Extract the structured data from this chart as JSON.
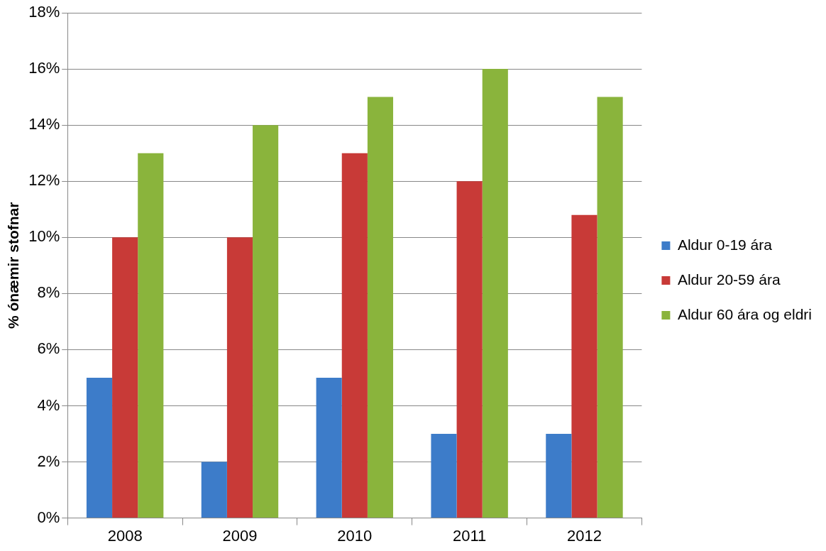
{
  "chart_data": {
    "type": "bar",
    "ylabel": "% ónæmir stofnar",
    "categories": [
      "2008",
      "2009",
      "2010",
      "2011",
      "2012"
    ],
    "series": [
      {
        "name": "Aldur 0-19 ára",
        "color": "#3d7cc9",
        "values": [
          5,
          2,
          5,
          3,
          3
        ]
      },
      {
        "name": "Aldur 20-59 ára",
        "color": "#c83a37",
        "values": [
          10,
          10,
          13,
          12,
          10.8
        ]
      },
      {
        "name": "Aldur 60 ára og eldri",
        "color": "#8ab43c",
        "values": [
          13,
          14,
          15,
          16,
          15
        ]
      }
    ],
    "ylim": [
      0,
      18
    ],
    "yticks": [
      {
        "value": 0,
        "label": "0%"
      },
      {
        "value": 2,
        "label": "2%"
      },
      {
        "value": 4,
        "label": "4%"
      },
      {
        "value": 6,
        "label": "6%"
      },
      {
        "value": 8,
        "label": "8%"
      },
      {
        "value": 10,
        "label": "10%"
      },
      {
        "value": 12,
        "label": "12%"
      },
      {
        "value": 14,
        "label": "14%"
      },
      {
        "value": 16,
        "label": "16%"
      },
      {
        "value": 18,
        "label": "18%"
      }
    ],
    "grid": "y",
    "legend": "right"
  }
}
